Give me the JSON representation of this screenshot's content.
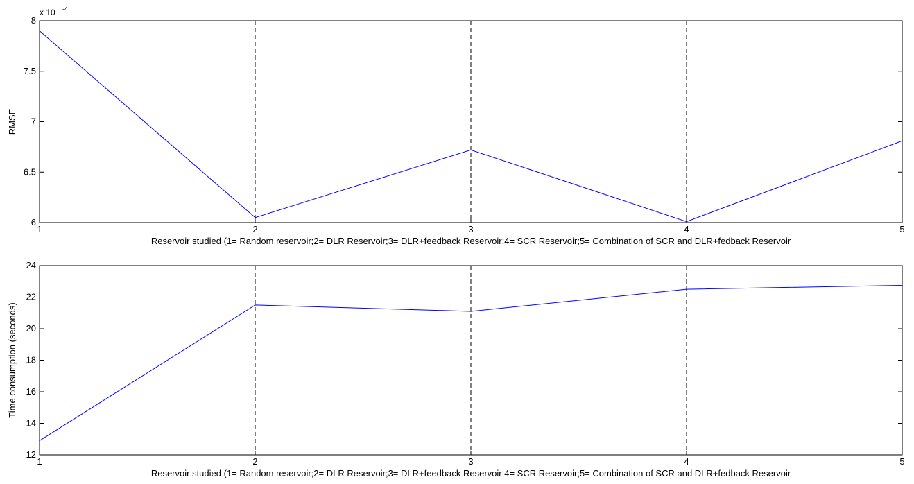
{
  "chart_data": [
    {
      "type": "line",
      "x": [
        1,
        2,
        3,
        4,
        5
      ],
      "series": [
        {
          "values": [
            7.9,
            6.05,
            6.72,
            6.01,
            6.81
          ],
          "color": "#0000ff"
        }
      ],
      "xlabel": "Reservoir studied (1= Random reservoir;2= DLR Reservoir;3= DLR+feedback Reservoir;4= SCR Reservoir;5= Combination of SCR and DLR+fedback Reservoir",
      "ylabel": "RMSE",
      "xlim": [
        1,
        5
      ],
      "ylim": [
        6,
        8
      ],
      "xticks": [
        "1",
        "2",
        "3",
        "4",
        "5"
      ],
      "yticks": [
        "6",
        "6.5",
        "7",
        "7.5",
        "8"
      ],
      "y_multiplier": {
        "base": "x 10",
        "exponent": "-4"
      },
      "grid": "vertical dashed"
    },
    {
      "type": "line",
      "x": [
        1,
        2,
        3,
        4,
        5
      ],
      "series": [
        {
          "values": [
            12.9,
            21.5,
            21.1,
            22.5,
            22.75
          ],
          "color": "#0000ff"
        }
      ],
      "xlabel": "Reservoir studied (1= Random reservoir;2= DLR Reservoir;3= DLR+feedback Reservoir;4= SCR Reservoir;5= Combination of SCR and DLR+fedback Reservoir",
      "ylabel": "Time consumption (seconds)",
      "xlim": [
        1,
        5
      ],
      "ylim": [
        12,
        24
      ],
      "xticks": [
        "1",
        "2",
        "3",
        "4",
        "5"
      ],
      "yticks": [
        "12",
        "14",
        "16",
        "18",
        "20",
        "22",
        "24"
      ],
      "grid": "vertical dashed"
    }
  ]
}
